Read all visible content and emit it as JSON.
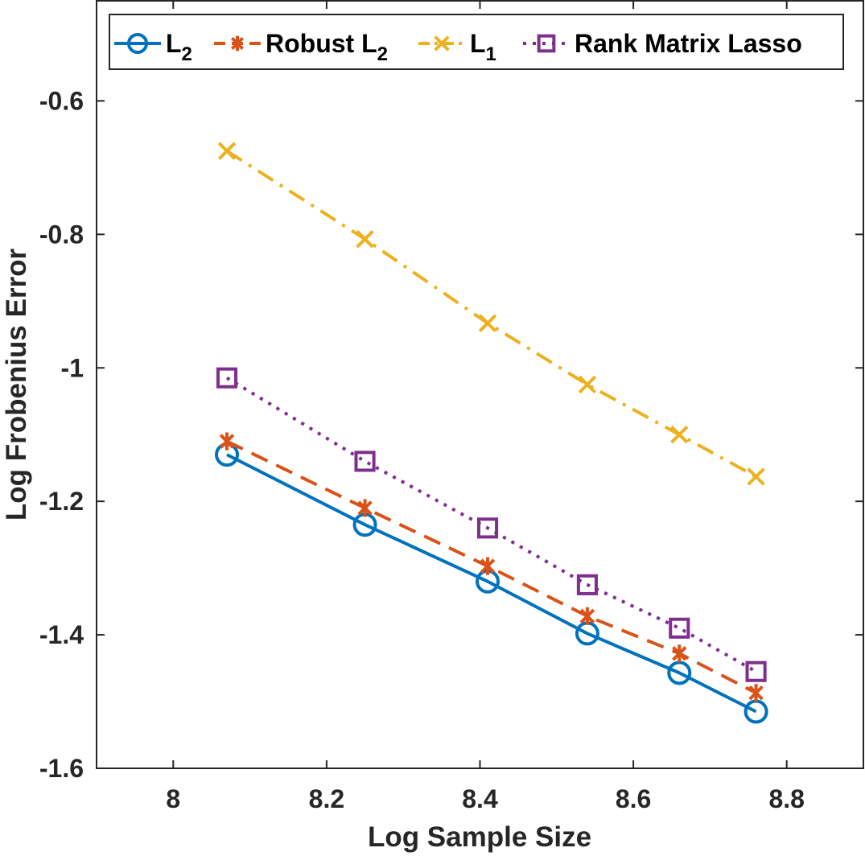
{
  "chart_data": {
    "type": "line",
    "xlabel": "Log Sample Size",
    "ylabel": "Log Frobenius Error",
    "xlim": [
      7.9,
      8.9
    ],
    "ylim": [
      -1.6,
      -0.45
    ],
    "xticks": [
      8,
      8.2,
      8.4,
      8.6,
      8.8
    ],
    "xtick_labels": [
      "8",
      "8.2",
      "8.4",
      "8.6",
      "8.8"
    ],
    "yticks": [
      -1.6,
      -1.4,
      -1.2,
      -1.0,
      -0.8,
      -0.6
    ],
    "ytick_labels": [
      "-1.6",
      "-1.4",
      "-1.2",
      "-1",
      "-0.8",
      "-0.6"
    ],
    "grid": false,
    "legend_position": "top",
    "x": [
      8.07,
      8.25,
      8.41,
      8.54,
      8.66,
      8.76
    ],
    "series": [
      {
        "key": "l2",
        "legend_main": "L",
        "legend_sub": "2",
        "legend_prefix": "",
        "color": "#0072BD",
        "line_style": "solid",
        "marker": "circle",
        "values": [
          -1.13,
          -1.235,
          -1.32,
          -1.398,
          -1.457,
          -1.515
        ]
      },
      {
        "key": "robust-l2",
        "legend_main": "L",
        "legend_sub": "2",
        "legend_prefix": "Robust ",
        "color": "#D95319",
        "line_style": "dashed",
        "marker": "asterisk",
        "values": [
          -1.11,
          -1.21,
          -1.297,
          -1.372,
          -1.428,
          -1.487
        ]
      },
      {
        "key": "l1",
        "legend_main": "L",
        "legend_sub": "1",
        "legend_prefix": "",
        "color": "#EDB120",
        "line_style": "dashdot",
        "marker": "x",
        "values": [
          -0.675,
          -0.807,
          -0.933,
          -1.025,
          -1.1,
          -1.163
        ]
      },
      {
        "key": "rank-matrix-lasso",
        "legend_main": "Rank Matrix Lasso",
        "legend_sub": "",
        "legend_prefix": "",
        "color": "#7E2F8E",
        "line_style": "dotted",
        "marker": "square",
        "values": [
          -1.015,
          -1.14,
          -1.24,
          -1.325,
          -1.39,
          -1.455
        ]
      }
    ]
  }
}
